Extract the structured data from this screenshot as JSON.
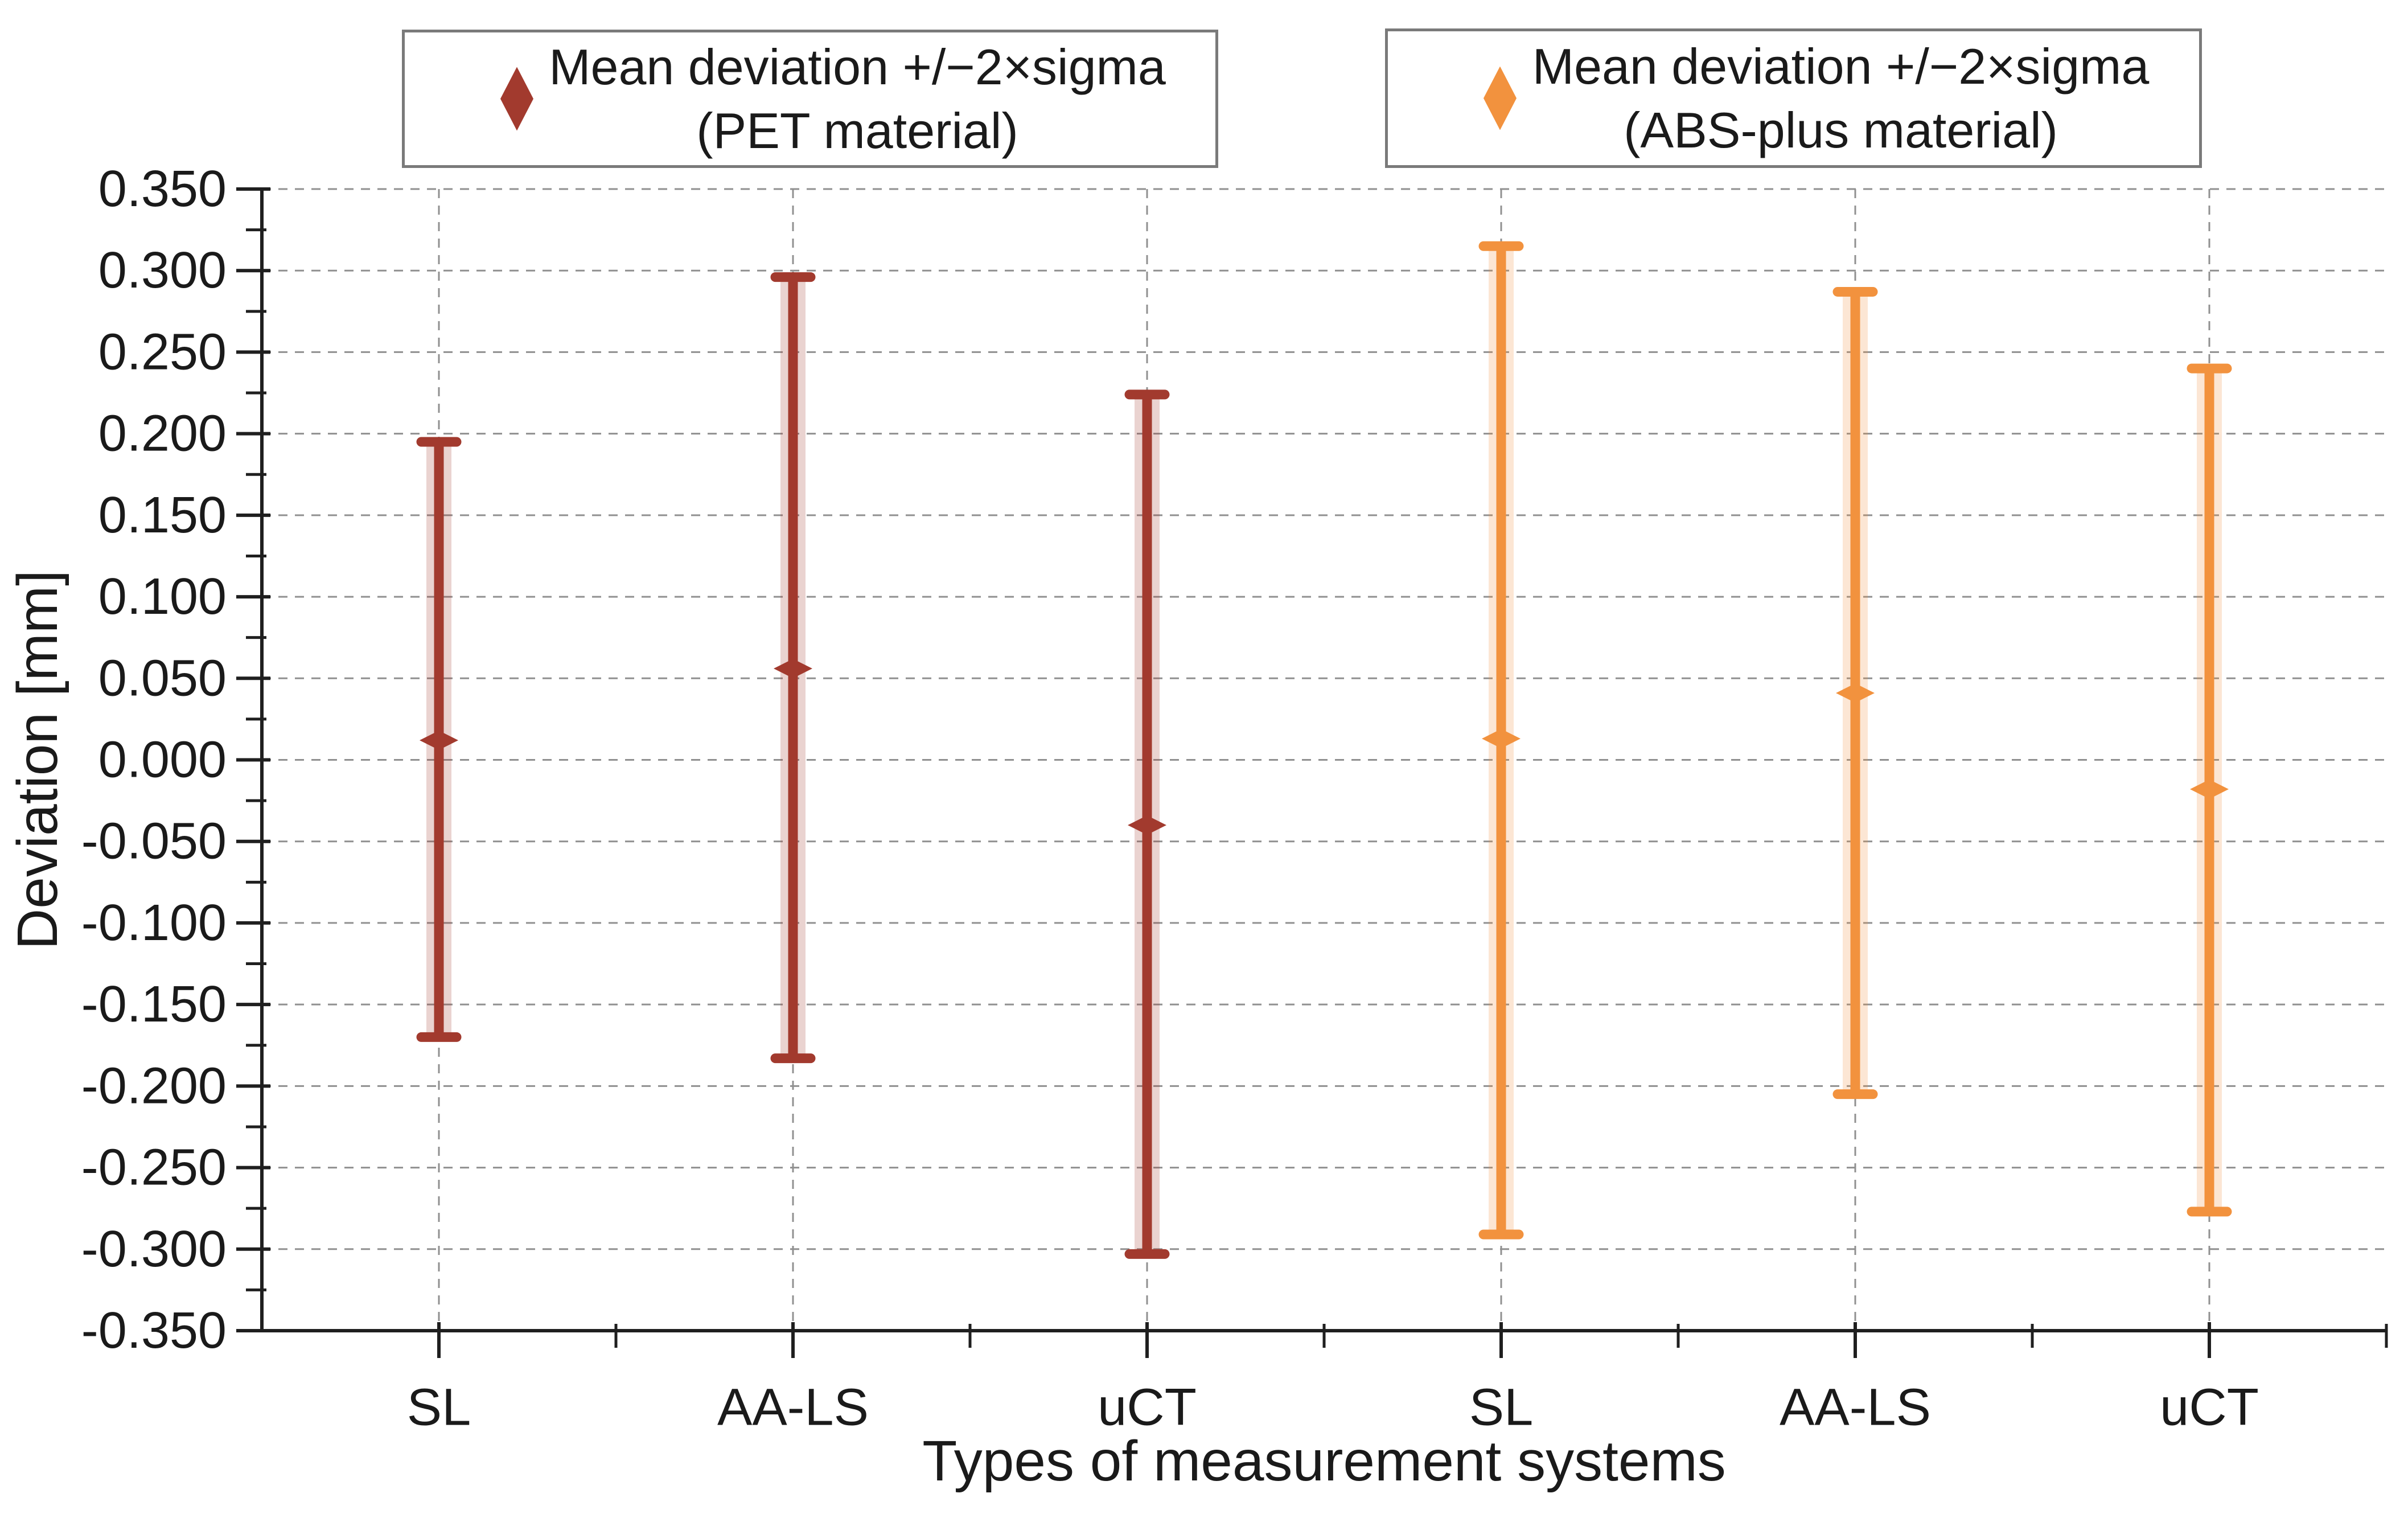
{
  "figure": {
    "background": "#ffffff",
    "text_color": "#1a1a1a",
    "axis_color": "#1f1f1f",
    "grid_color": "#909090",
    "legend_border_color": "#7a7a7a"
  },
  "legend": {
    "pet": {
      "line1": "Mean deviation +/−2×sigma",
      "line2": "(PET material)",
      "marker": "diamond-icon",
      "color": "#a23a2e"
    },
    "abs": {
      "line1": "Mean deviation +/−2×sigma",
      "line2": "(ABS-plus material)",
      "marker": "diamond-icon",
      "color": "#f2923e"
    }
  },
  "chart_data": {
    "type": "scatter",
    "subtype": "mean-with-error-bars",
    "title": "",
    "xlabel": "Types of measurement systems",
    "ylabel": "Deviation [mm]",
    "ylim": [
      -0.35,
      0.35
    ],
    "ytick_step": 0.05,
    "ytick_labels": [
      "0.350",
      "0.300",
      "0.250",
      "0.200",
      "0.150",
      "0.100",
      "0.050",
      "0.000",
      "-0.050",
      "-0.100",
      "-0.150",
      "-0.200",
      "-0.250",
      "-0.300",
      "-0.350"
    ],
    "categories": [
      "SL",
      "AA-LS",
      "uCT",
      "SL",
      "AA-LS",
      "uCT"
    ],
    "grid": "dashed, horizontal at every 0.050 and vertical at each category",
    "legend_position": "top",
    "series": [
      {
        "name": "Mean deviation +/−2×sigma (PET material)",
        "color": "#a23a2e",
        "category_offset": 0,
        "points": [
          {
            "x": "SL",
            "mean": 0.012,
            "upper": 0.195,
            "lower": -0.17
          },
          {
            "x": "AA-LS",
            "mean": 0.056,
            "upper": 0.296,
            "lower": -0.183
          },
          {
            "x": "uCT",
            "mean": -0.04,
            "upper": 0.224,
            "lower": -0.303
          }
        ]
      },
      {
        "name": "Mean deviation +/−2×sigma (ABS-plus material)",
        "color": "#f2923e",
        "category_offset": 3,
        "points": [
          {
            "x": "SL",
            "mean": 0.013,
            "upper": 0.315,
            "lower": -0.291
          },
          {
            "x": "AA-LS",
            "mean": 0.041,
            "upper": 0.287,
            "lower": -0.205
          },
          {
            "x": "uCT",
            "mean": -0.018,
            "upper": 0.24,
            "lower": -0.277
          }
        ]
      }
    ]
  }
}
